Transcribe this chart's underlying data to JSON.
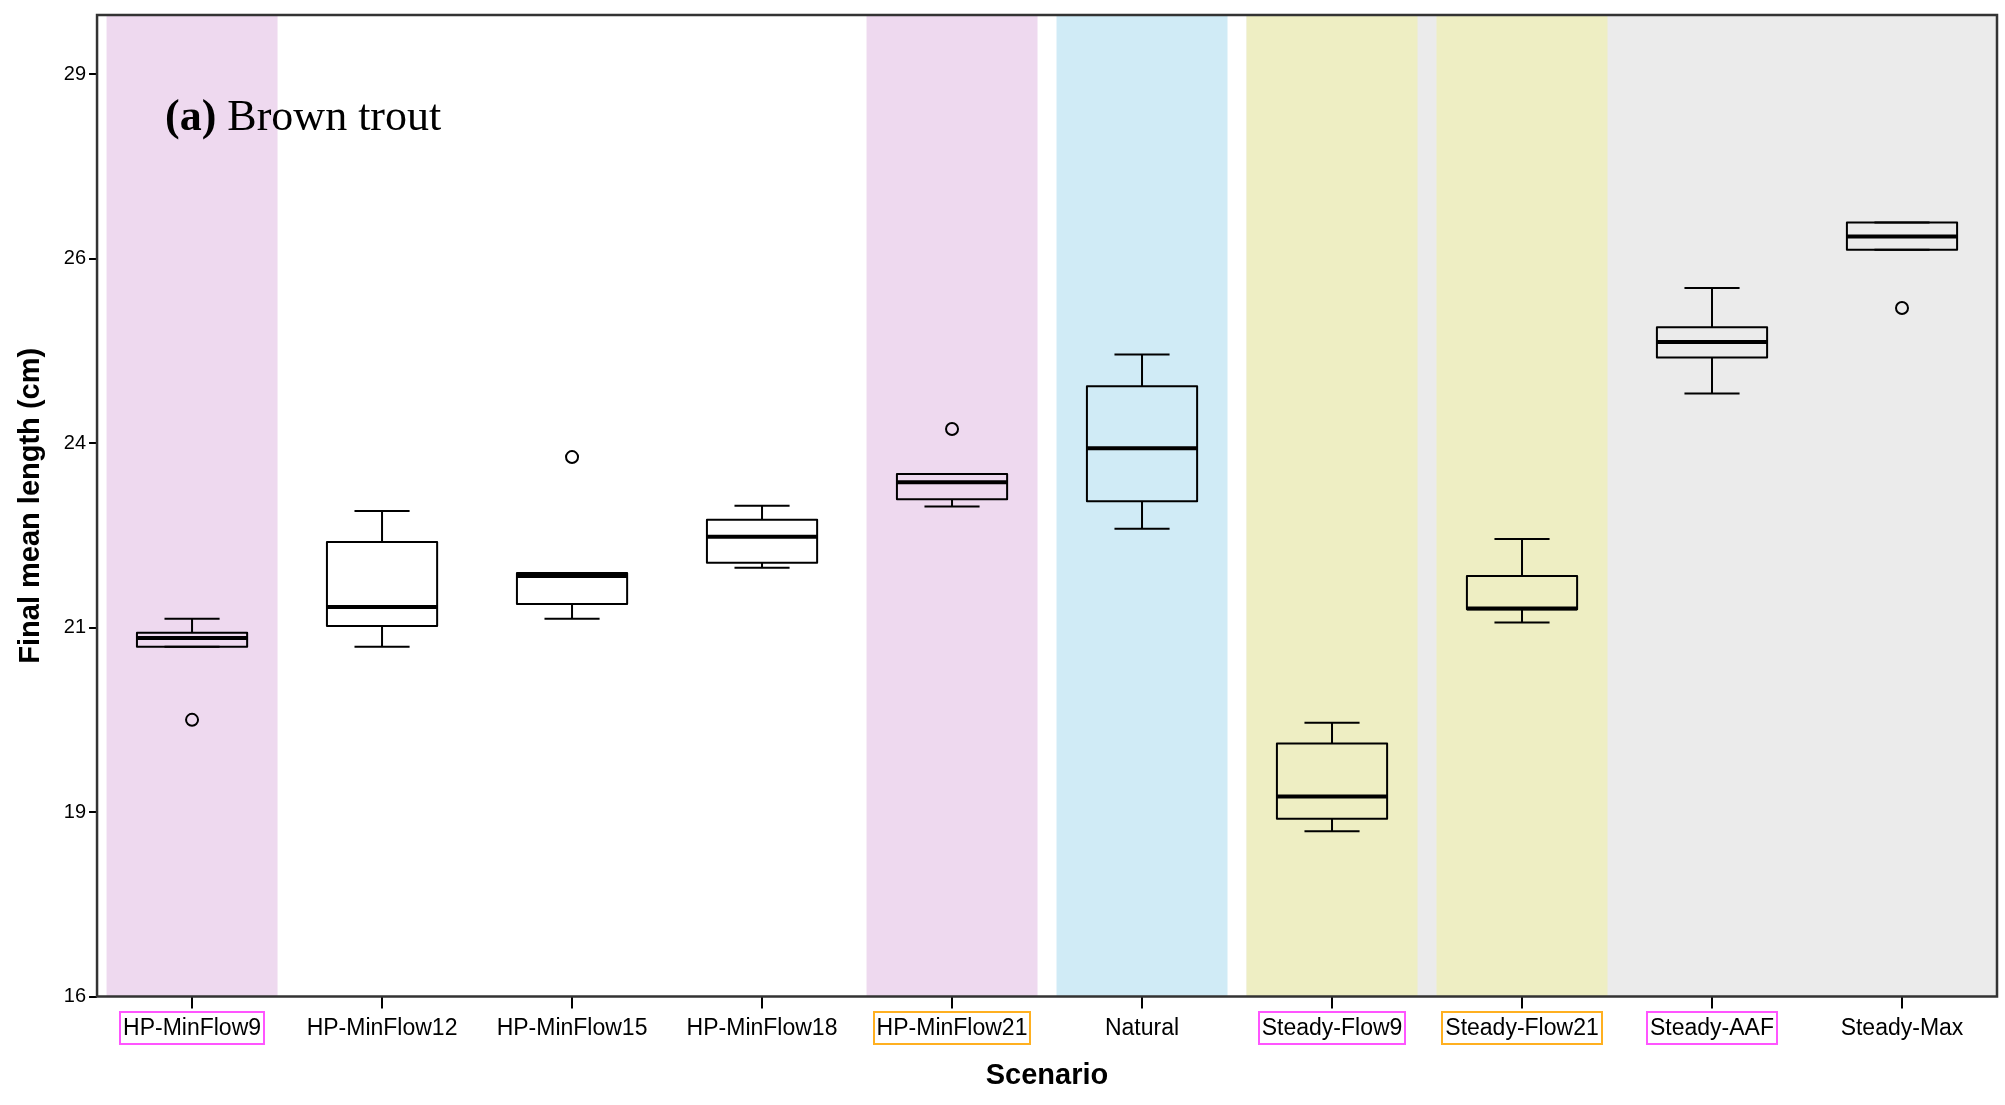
{
  "chart_data": {
    "type": "box",
    "xlabel": "Scenario",
    "ylabel": "Final mean length (cm)",
    "annotations": [
      "(a) Brown trout"
    ],
    "categories": [
      "HP-MinFlow9",
      "HP-MinFlow12",
      "HP-MinFlow15",
      "HP-MinFlow18",
      "HP-MinFlow21",
      "Natural",
      "Steady-Flow9",
      "Steady-Flow21",
      "Steady-AAF",
      "Steady-Max"
    ],
    "boxes": [
      {
        "low": 20.74,
        "q1": 20.74,
        "median": 20.86,
        "q3": 20.93,
        "high": 21.12,
        "outliers": [
          19.75
        ]
      },
      {
        "low": 20.74,
        "q1": 21.02,
        "median": 21.28,
        "q3": 22.16,
        "high": 22.58
      },
      {
        "low": 21.12,
        "q1": 21.32,
        "median": 21.7,
        "q3": 21.74,
        "high": 21.74,
        "outliers": [
          23.31
        ]
      },
      {
        "low": 21.81,
        "q1": 21.88,
        "median": 22.23,
        "q3": 22.46,
        "high": 22.65
      },
      {
        "low": 22.64,
        "q1": 22.74,
        "median": 22.97,
        "q3": 23.08,
        "high": 23.08,
        "outliers": [
          23.69
        ]
      },
      {
        "low": 22.34,
        "q1": 22.71,
        "median": 23.43,
        "q3": 24.27,
        "high": 24.7
      },
      {
        "low": 18.24,
        "q1": 18.41,
        "median": 18.71,
        "q3": 19.43,
        "high": 19.71
      },
      {
        "low": 21.07,
        "q1": 21.25,
        "median": 21.26,
        "q3": 21.7,
        "high": 22.2
      },
      {
        "low": 24.17,
        "q1": 24.66,
        "median": 24.87,
        "q3": 25.07,
        "high": 25.6
      },
      {
        "low": 26.12,
        "q1": 26.12,
        "median": 26.3,
        "q3": 26.49,
        "high": 26.49,
        "outliers": [
          25.33
        ]
      }
    ],
    "ylim": [
      16,
      29.3
    ],
    "yticks": [
      16,
      {
        "value": 18.5,
        "label": "19"
      },
      21,
      {
        "value": 23.5,
        "label": "24"
      },
      26,
      {
        "value": 28.5,
        "label": "29"
      }
    ],
    "bands": [
      {
        "axis": "x",
        "from": "Steady-Flow9",
        "to": "Steady-Max",
        "color": "#ebebeb"
      },
      {
        "axis": "x",
        "from": "HP-MinFlow9",
        "to": "HP-MinFlow9",
        "color": "#eed9ef"
      },
      {
        "axis": "x",
        "from": "HP-MinFlow21",
        "to": "HP-MinFlow21",
        "color": "#eed9ef"
      },
      {
        "axis": "x",
        "from": "Natural",
        "to": "Natural",
        "color": "#d0ebf6"
      },
      {
        "axis": "x",
        "from": "Steady-Flow9",
        "to": "Steady-Flow9",
        "color": "#eeeec3"
      },
      {
        "axis": "x",
        "from": "Steady-Flow21",
        "to": "Steady-Flow21",
        "color": "#eeeec3"
      }
    ],
    "grid": false,
    "legend": false
  }
}
